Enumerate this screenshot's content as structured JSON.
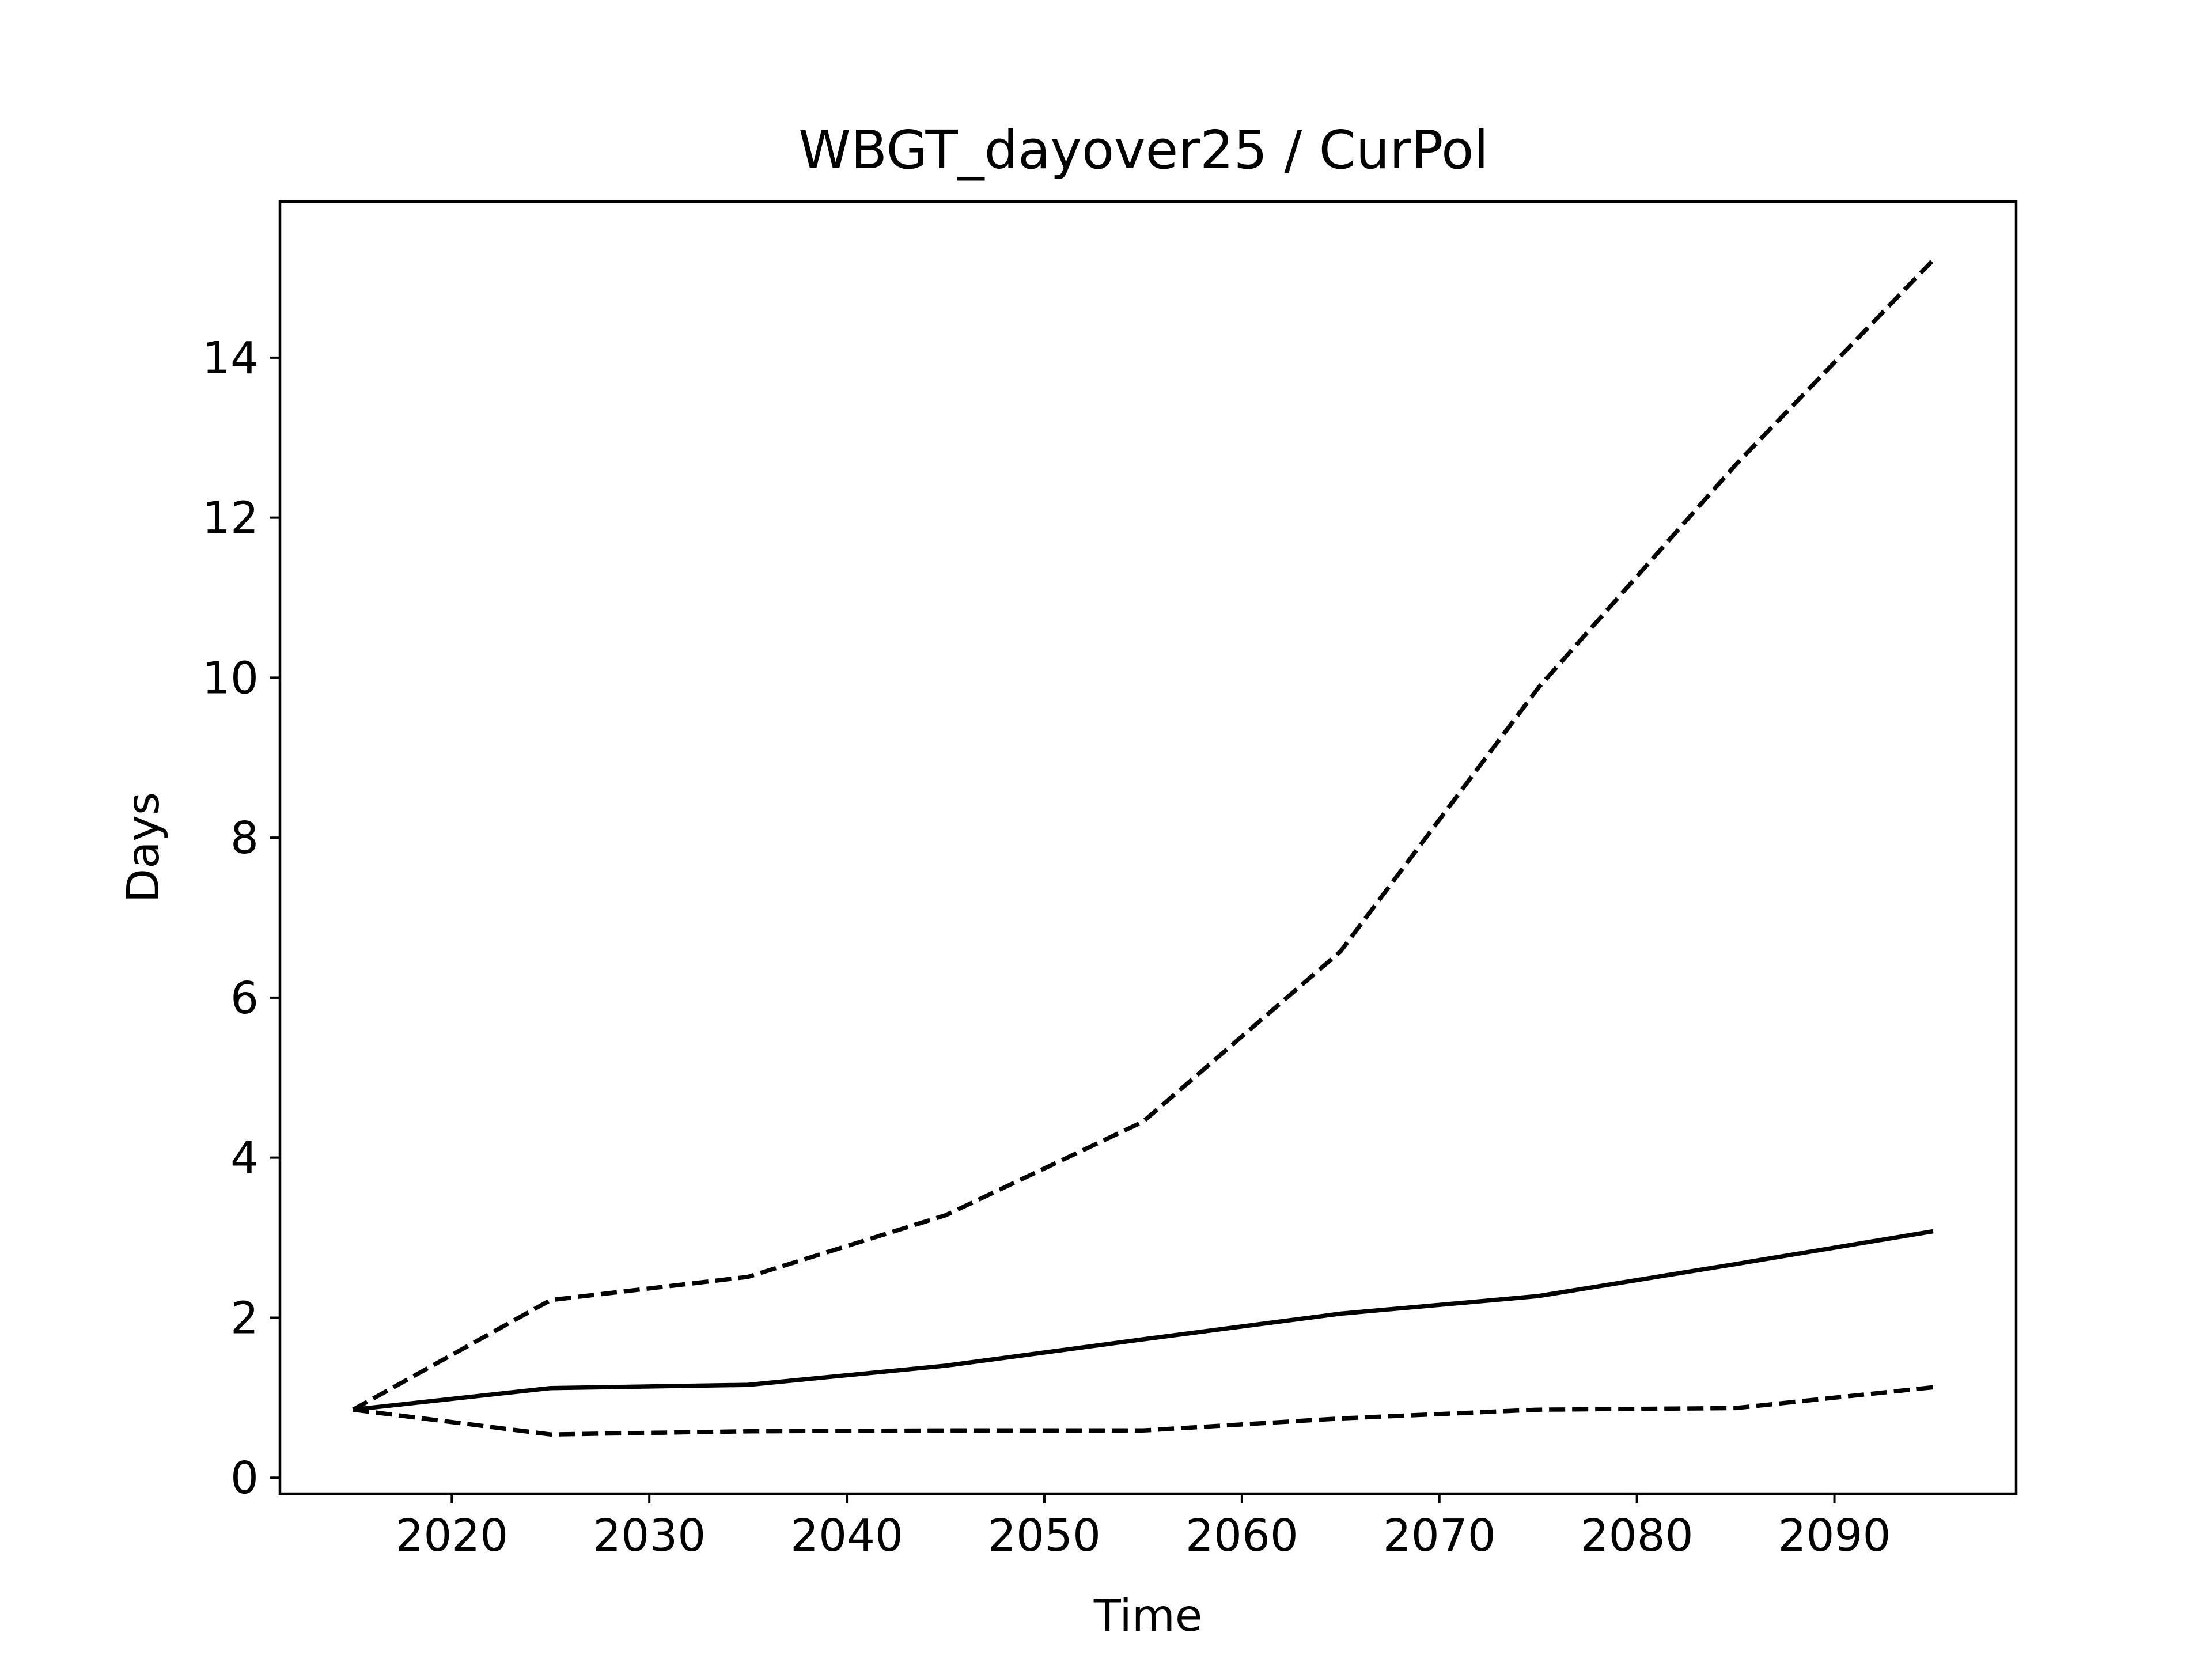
{
  "chart_data": {
    "type": "line",
    "title": "WBGT_dayover25 / CurPol",
    "xlabel": "Time",
    "ylabel": "Days",
    "xlim": [
      2011.3,
      2099.2
    ],
    "ylim": [
      -0.2,
      15.95
    ],
    "xticks": [
      2020,
      2030,
      2040,
      2050,
      2060,
      2070,
      2080,
      2090
    ],
    "yticks": [
      0,
      2,
      4,
      6,
      8,
      10,
      12,
      14
    ],
    "grid": false,
    "line_color": "#000000",
    "x": [
      2015,
      2025,
      2035,
      2045,
      2055,
      2065,
      2075,
      2085,
      2095
    ],
    "series": [
      {
        "style": "solid",
        "values": [
          0.85,
          1.12,
          1.16,
          1.4,
          1.73,
          2.05,
          2.27,
          2.67,
          3.08
        ]
      },
      {
        "style": "dashed",
        "values": [
          0.85,
          2.22,
          2.51,
          3.28,
          4.45,
          6.58,
          9.87,
          12.66,
          15.22
        ]
      },
      {
        "style": "dashed",
        "values": [
          0.85,
          0.54,
          0.58,
          0.59,
          0.59,
          0.74,
          0.85,
          0.87,
          1.13
        ]
      }
    ]
  }
}
